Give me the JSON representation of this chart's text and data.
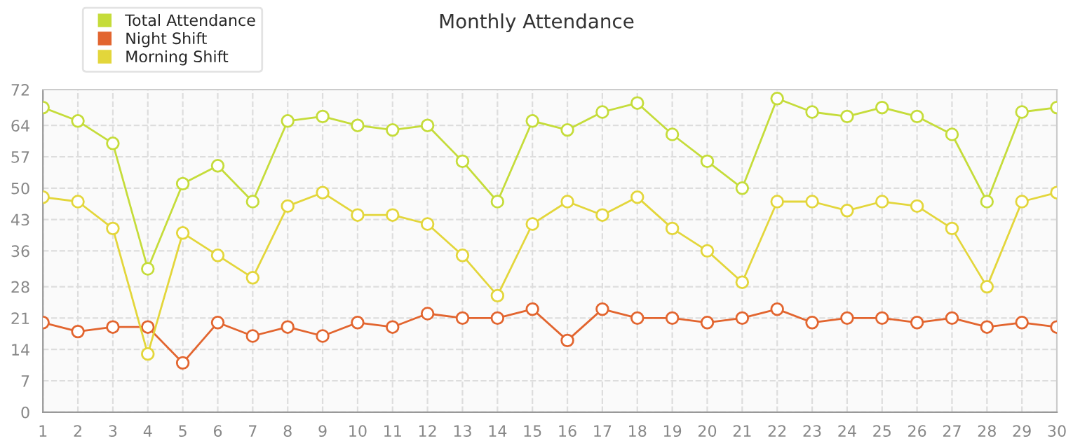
{
  "chart_data": {
    "type": "line",
    "title": "Monthly Attendance",
    "x": [
      1,
      2,
      3,
      4,
      5,
      6,
      7,
      8,
      9,
      10,
      11,
      12,
      13,
      14,
      15,
      16,
      17,
      18,
      19,
      20,
      21,
      22,
      23,
      24,
      25,
      26,
      27,
      28,
      29,
      30
    ],
    "series": [
      {
        "name": "Total Attendance",
        "color": "#c5dc3a",
        "values": [
          68,
          65,
          60,
          32,
          51,
          55,
          47,
          65,
          66,
          64,
          63,
          64,
          56,
          47,
          65,
          63,
          67,
          69,
          62,
          56,
          50,
          70,
          67,
          66,
          68,
          66,
          62,
          47,
          67,
          68
        ]
      },
      {
        "name": "Night Shift",
        "color": "#e2652f",
        "values": [
          20,
          18,
          19,
          19,
          11,
          20,
          17,
          19,
          17,
          20,
          19,
          22,
          21,
          21,
          23,
          16,
          23,
          21,
          21,
          20,
          21,
          23,
          20,
          21,
          21,
          20,
          21,
          19,
          20,
          19
        ]
      },
      {
        "name": "Morning Shift",
        "color": "#e3d63b",
        "values": [
          48,
          47,
          41,
          13,
          40,
          35,
          30,
          46,
          49,
          44,
          44,
          42,
          35,
          26,
          42,
          47,
          44,
          48,
          41,
          36,
          29,
          47,
          47,
          45,
          47,
          46,
          41,
          28,
          47,
          49
        ]
      }
    ],
    "xlim": [
      1,
      30
    ],
    "xticks": [
      1,
      2,
      3,
      4,
      5,
      6,
      7,
      8,
      9,
      10,
      11,
      12,
      13,
      14,
      15,
      16,
      17,
      18,
      19,
      20,
      21,
      22,
      23,
      24,
      25,
      26,
      27,
      28,
      29,
      30
    ],
    "ylim": [
      0,
      72
    ],
    "yticks": [
      0,
      7,
      14,
      21,
      28,
      36,
      43,
      50,
      57,
      64,
      72
    ],
    "grid": true,
    "legend": "top left",
    "marker": "circle",
    "line_style": "solid"
  }
}
